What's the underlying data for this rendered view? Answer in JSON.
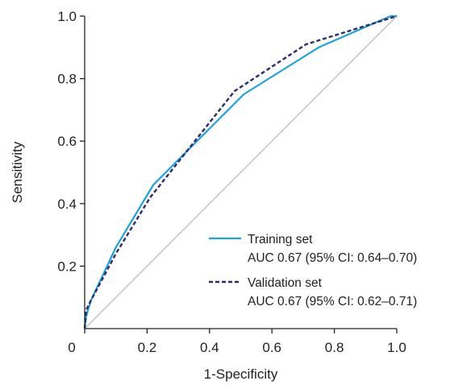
{
  "chart_data": {
    "type": "line",
    "title": "",
    "xlabel": "1-Specificity",
    "ylabel": "Sensitivity",
    "xlim": [
      0,
      1
    ],
    "ylim": [
      0,
      1
    ],
    "xticks": [
      "0",
      "0.2",
      "0.4",
      "0.6",
      "0.8",
      "1.0"
    ],
    "yticks": [
      "0.2",
      "0.4",
      "0.6",
      "0.8",
      "1.0"
    ],
    "grid": false,
    "legend_position": "bottom-right",
    "reference_line": {
      "x": [
        0,
        1
      ],
      "y": [
        0,
        1
      ],
      "color": "#c8c8c8"
    },
    "series": [
      {
        "name": "Training set",
        "auc_text": "AUC 0.67 (95% CI: 0.64–0.70)",
        "color": "#1aa3dd",
        "style": "solid",
        "x": [
          0,
          0.005,
          0.02,
          0.1,
          0.22,
          0.51,
          0.75,
          0.98,
          1.0
        ],
        "y": [
          0,
          0.04,
          0.09,
          0.26,
          0.46,
          0.75,
          0.9,
          1.0,
          1.0
        ]
      },
      {
        "name": "Validation set",
        "auc_text": "AUC 0.67 (95% CI: 0.62–0.71)",
        "color": "#2e2b6b",
        "style": "dashed",
        "x": [
          0,
          0.005,
          0.02,
          0.1,
          0.21,
          0.48,
          0.71,
          1.0
        ],
        "y": [
          0,
          0.06,
          0.09,
          0.24,
          0.42,
          0.76,
          0.91,
          1.0
        ]
      }
    ]
  }
}
